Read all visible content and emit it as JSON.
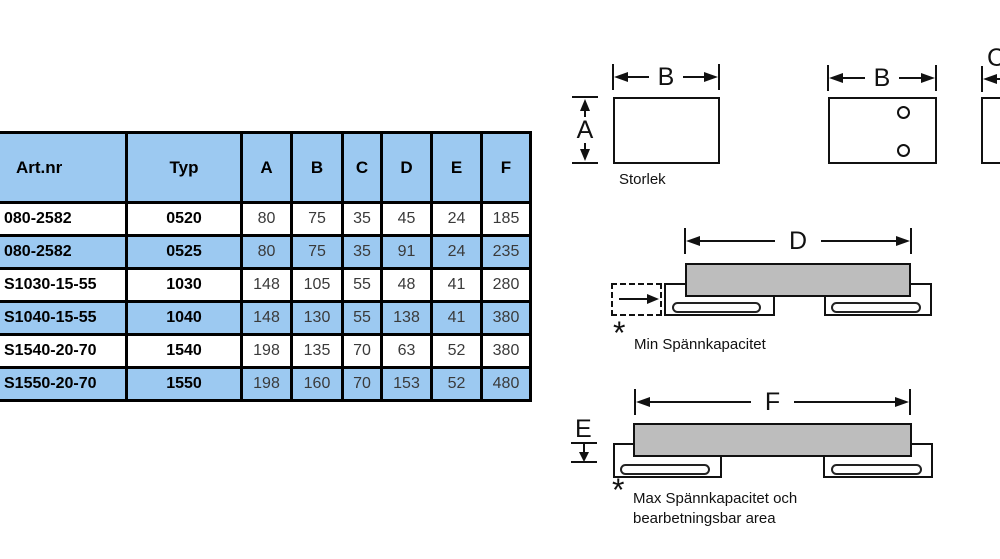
{
  "table": {
    "columns": [
      {
        "key": "artnr",
        "label": "Art.nr",
        "bold": true,
        "align": "left"
      },
      {
        "key": "typ",
        "label": "Typ",
        "bold": true,
        "align": "center"
      },
      {
        "key": "A",
        "label": "A",
        "bold": false,
        "align": "center"
      },
      {
        "key": "B",
        "label": "B",
        "bold": false,
        "align": "center"
      },
      {
        "key": "C",
        "label": "C",
        "bold": false,
        "align": "center"
      },
      {
        "key": "D",
        "label": "D",
        "bold": false,
        "align": "center"
      },
      {
        "key": "E",
        "label": "E",
        "bold": false,
        "align": "center"
      },
      {
        "key": "F",
        "label": "F",
        "bold": false,
        "align": "center"
      }
    ],
    "rows": [
      {
        "artnr": "080-2582",
        "typ": "0520",
        "A": "80",
        "B": "75",
        "C": "35",
        "D": "45",
        "E": "24",
        "F": "185",
        "highlight": false
      },
      {
        "artnr": "080-2582",
        "typ": "0525",
        "A": "80",
        "B": "75",
        "C": "35",
        "D": "91",
        "E": "24",
        "F": "235",
        "highlight": true
      },
      {
        "artnr": "S1030-15-55",
        "typ": "1030",
        "A": "148",
        "B": "105",
        "C": "55",
        "D": "48",
        "E": "41",
        "F": "280",
        "highlight": false
      },
      {
        "artnr": "S1040-15-55",
        "typ": "1040",
        "A": "148",
        "B": "130",
        "C": "55",
        "D": "138",
        "E": "41",
        "F": "380",
        "highlight": true
      },
      {
        "artnr": "S1540-20-70",
        "typ": "1540",
        "A": "198",
        "B": "135",
        "C": "70",
        "D": "63",
        "E": "52",
        "F": "380",
        "highlight": false
      },
      {
        "artnr": "S1550-20-70",
        "typ": "1550",
        "A": "198",
        "B": "160",
        "C": "70",
        "D": "153",
        "E": "52",
        "F": "480",
        "highlight": true
      }
    ]
  },
  "diagrams": {
    "top_view_front": {
      "width_label": "B",
      "height_label": "A",
      "caption": "Storlek"
    },
    "top_view_holes": {
      "width_label": "B"
    },
    "side_view": {
      "depth_label": "C"
    },
    "min_clamp": {
      "span_label": "D",
      "footnote_mark": "*",
      "caption": "Min Spännkapacitet"
    },
    "max_clamp": {
      "span_label": "F",
      "height_label": "E",
      "footnote_mark": "*",
      "caption_line1": "Max Spännkapacitet och",
      "caption_line2": "bearbetningsbar area"
    }
  },
  "colors": {
    "table_blue": "#9CC9F1",
    "workpiece_gray": "#BDBDBD",
    "line_black": "#111111"
  }
}
